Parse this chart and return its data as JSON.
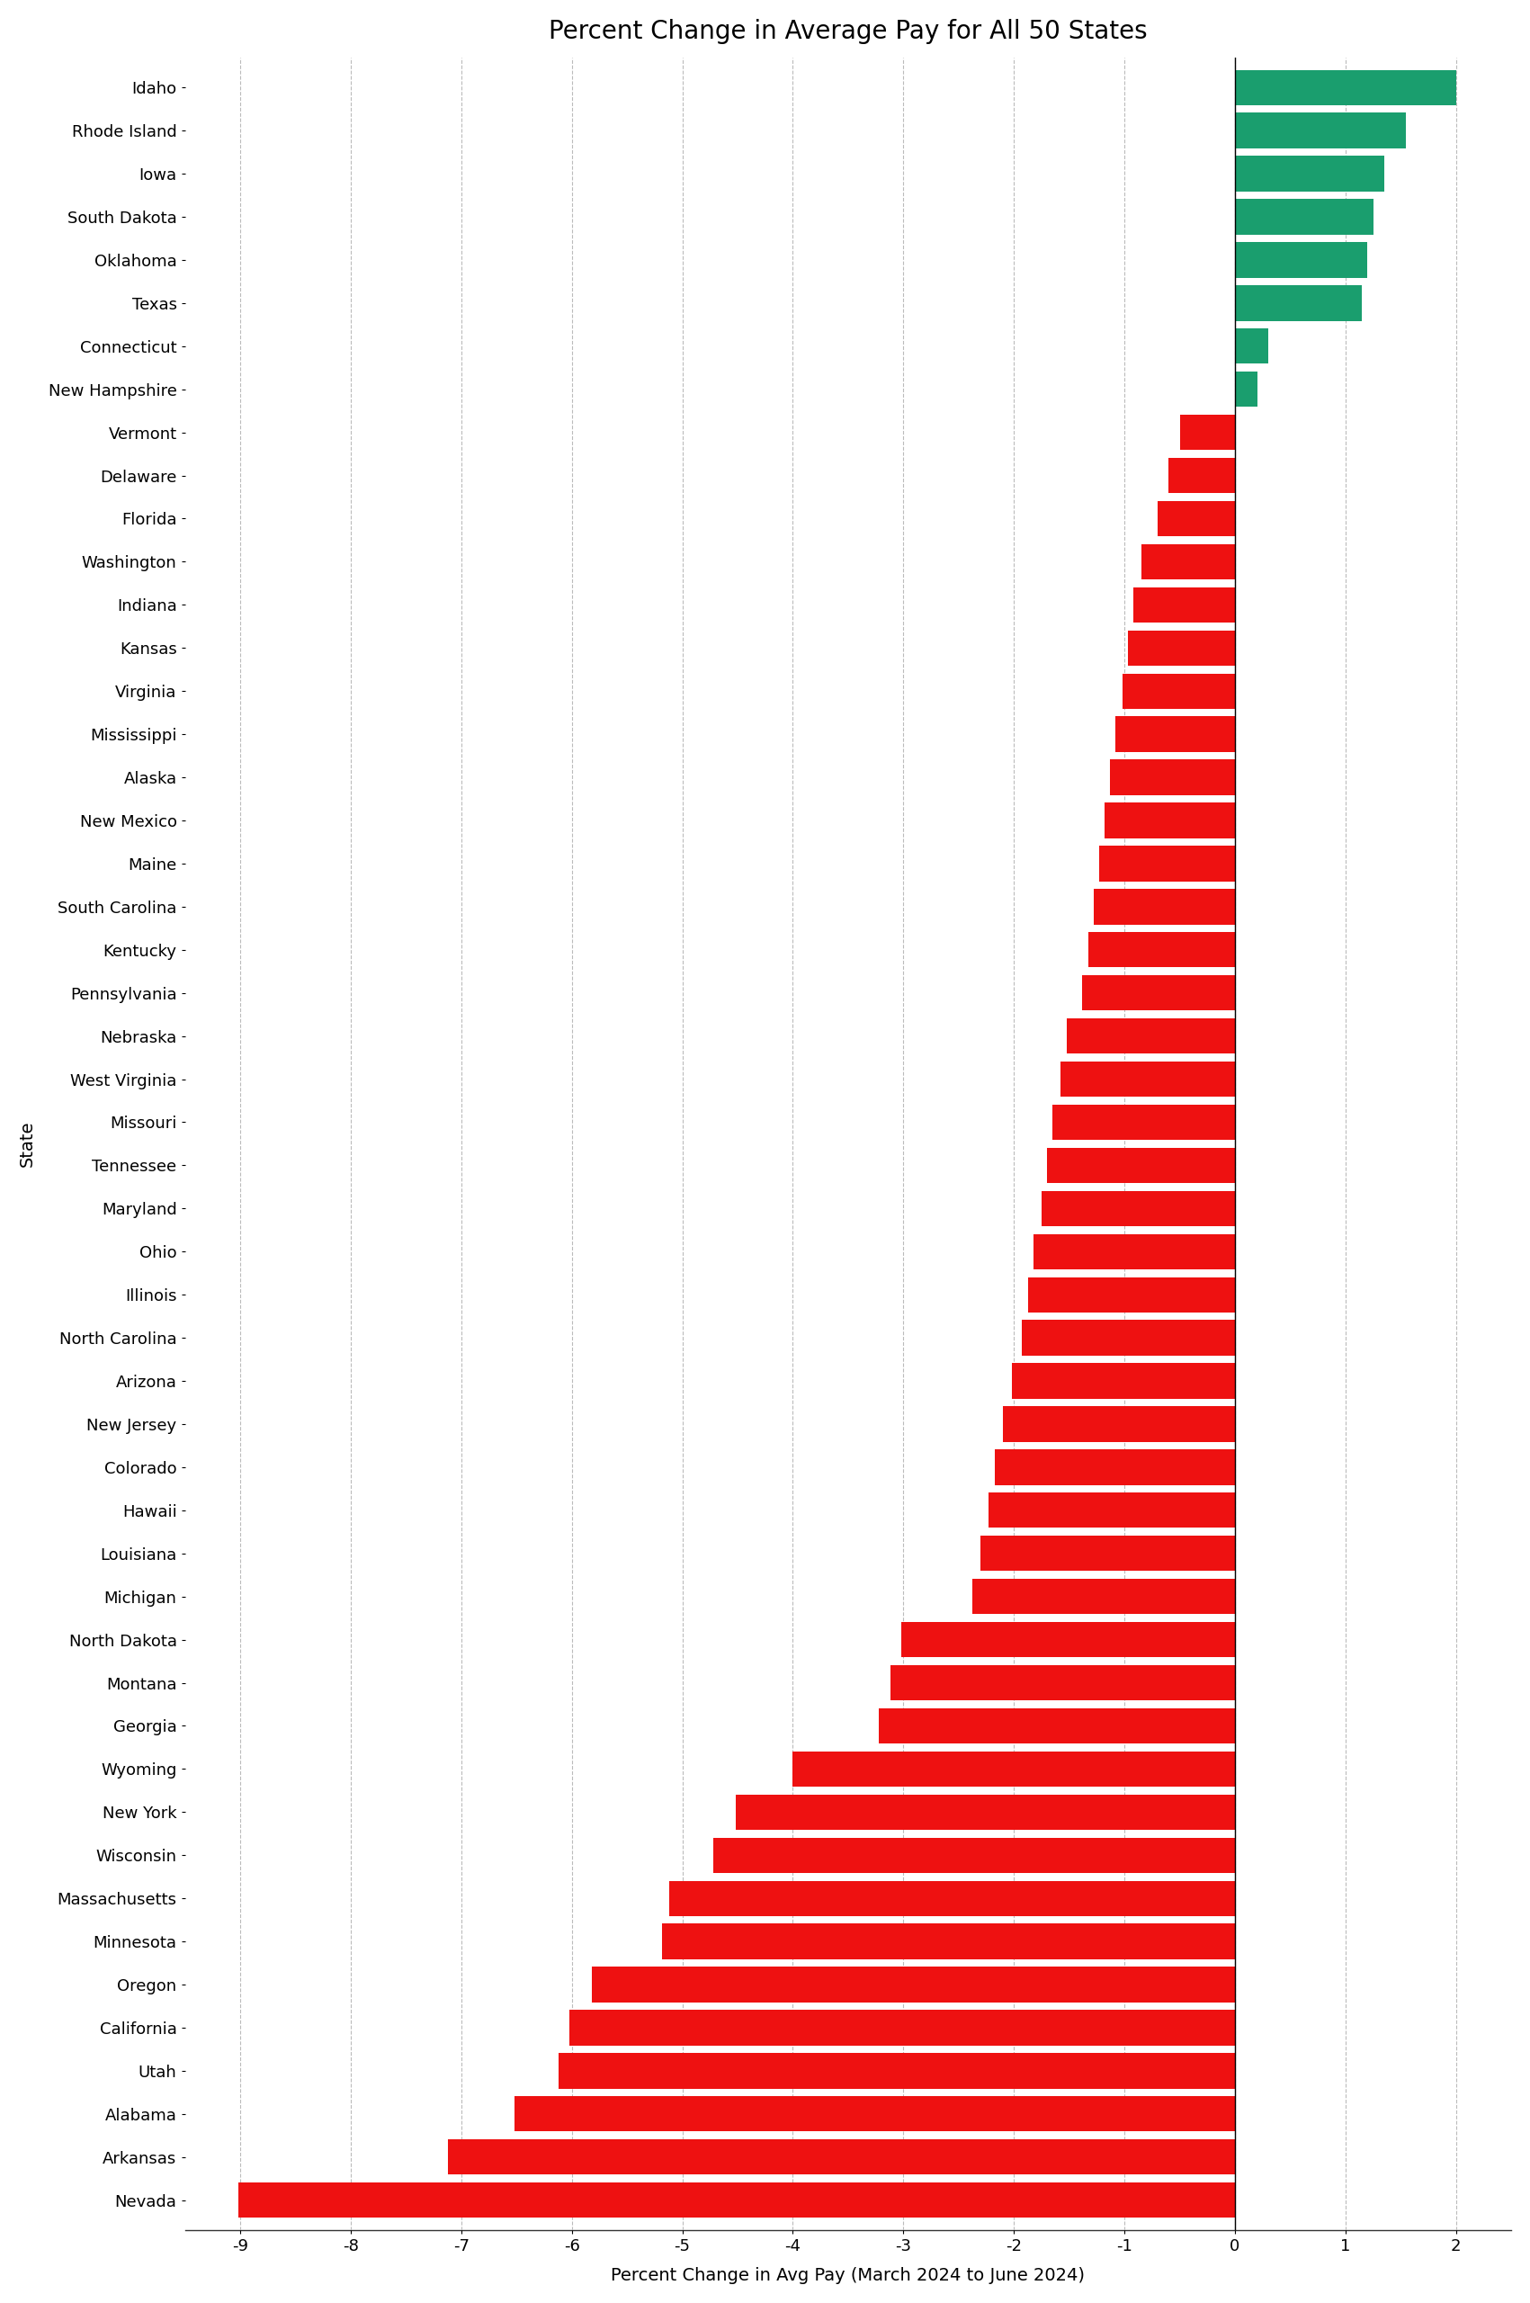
{
  "title": "Percent Change in Average Pay for All 50 States",
  "xlabel": "Percent Change in Avg Pay (March 2024 to June 2024)",
  "ylabel": "State",
  "states": [
    "Idaho",
    "Rhode Island",
    "Iowa",
    "South Dakota",
    "Oklahoma",
    "Texas",
    "Connecticut",
    "New Hampshire",
    "Vermont",
    "Delaware",
    "Florida",
    "Washington",
    "Indiana",
    "Kansas",
    "Virginia",
    "Mississippi",
    "Alaska",
    "New Mexico",
    "Maine",
    "South Carolina",
    "Kentucky",
    "Pennsylvania",
    "Nebraska",
    "West Virginia",
    "Missouri",
    "Tennessee",
    "Maryland",
    "Ohio",
    "Illinois",
    "North Carolina",
    "Arizona",
    "New Jersey",
    "Colorado",
    "Hawaii",
    "Louisiana",
    "Michigan",
    "North Dakota",
    "Montana",
    "Georgia",
    "Wyoming",
    "New York",
    "Wisconsin",
    "Massachusetts",
    "Minnesota",
    "Oregon",
    "California",
    "Utah",
    "Alabama",
    "Arkansas",
    "Nevada"
  ],
  "values": [
    2.0,
    1.55,
    1.35,
    1.25,
    1.2,
    1.15,
    0.3,
    0.2,
    -0.5,
    -0.6,
    -0.7,
    -0.85,
    -0.92,
    -0.97,
    -1.02,
    -1.08,
    -1.13,
    -1.18,
    -1.23,
    -1.28,
    -1.33,
    -1.38,
    -1.52,
    -1.58,
    -1.65,
    -1.7,
    -1.75,
    -1.82,
    -1.87,
    -1.93,
    -2.02,
    -2.1,
    -2.17,
    -2.23,
    -2.3,
    -2.38,
    -3.02,
    -3.12,
    -3.22,
    -4.0,
    -4.52,
    -4.72,
    -5.12,
    -5.18,
    -5.82,
    -6.02,
    -6.12,
    -6.52,
    -7.12,
    -9.02
  ],
  "positive_color": "#1a9e6e",
  "negative_color": "#ee1111",
  "background_color": "#ffffff",
  "xlim": [
    -9.5,
    2.5
  ],
  "xticks": [
    -9,
    -8,
    -7,
    -6,
    -5,
    -4,
    -3,
    -2,
    -1,
    0,
    1,
    2
  ],
  "bar_height": 0.82,
  "grid_color": "#bbbbbb",
  "title_fontsize": 20,
  "label_fontsize": 14,
  "tick_fontsize": 13
}
